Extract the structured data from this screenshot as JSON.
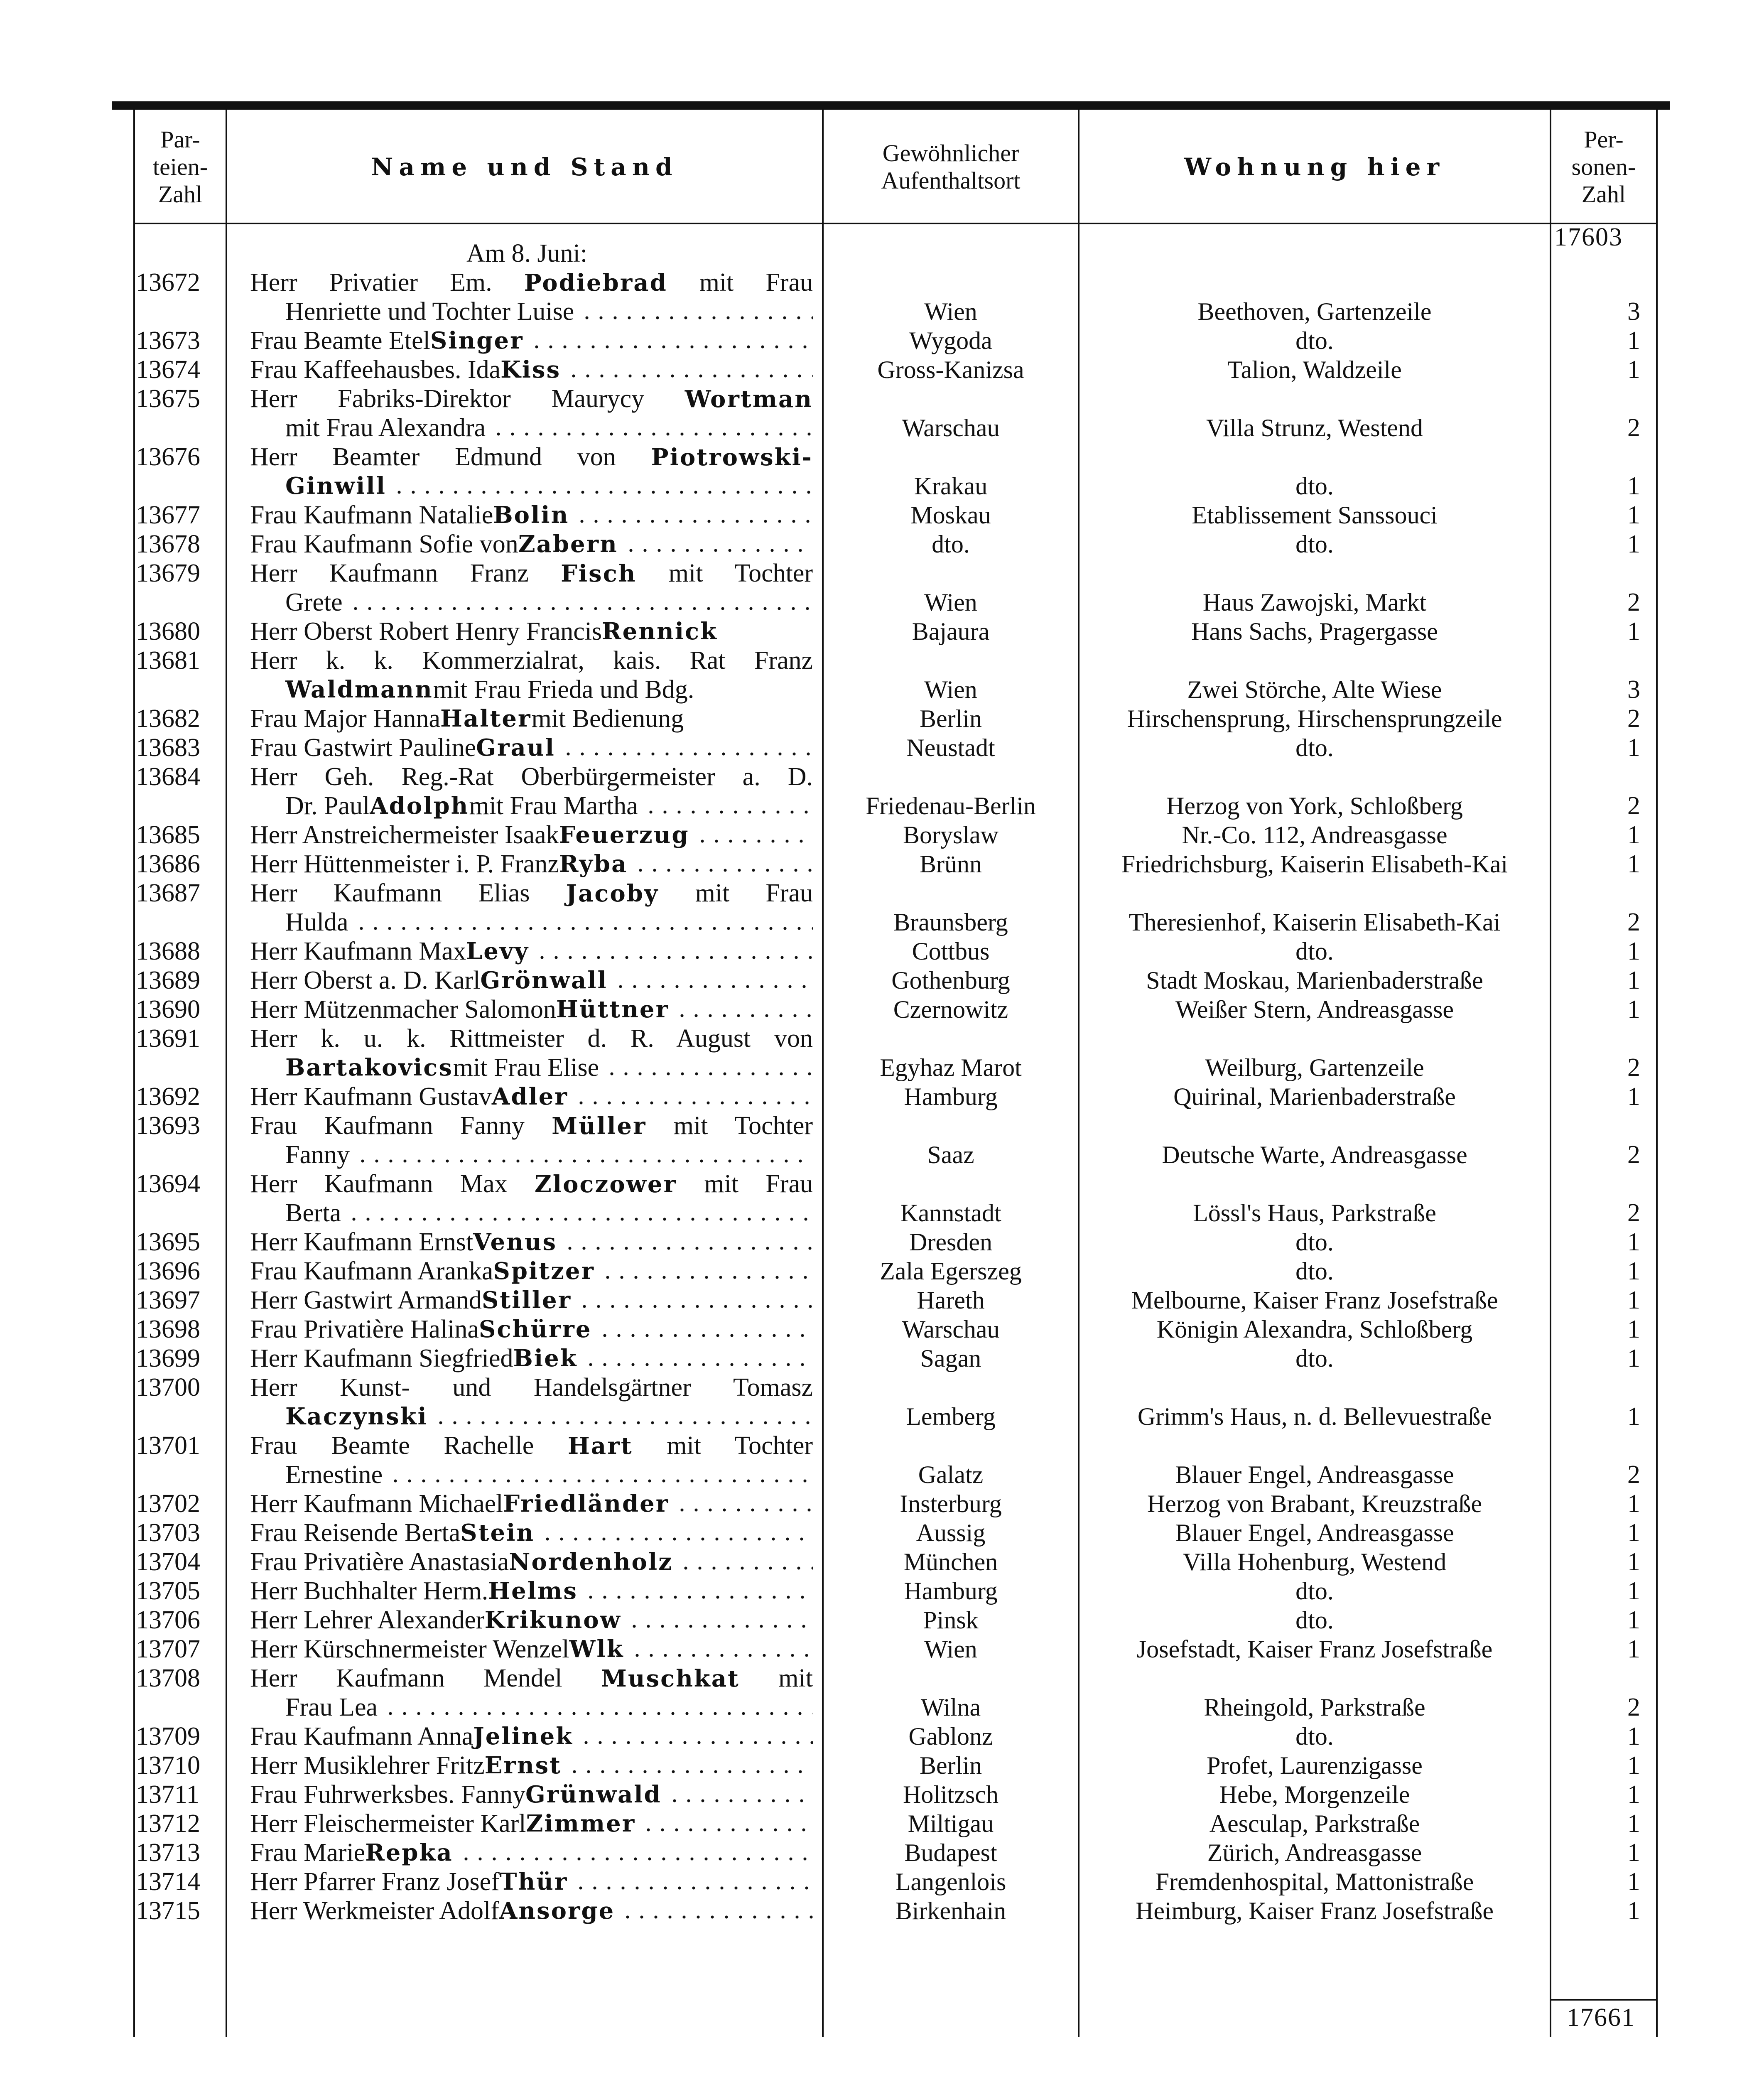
{
  "header": {
    "col_number": "Par-\nteien-\nZahl",
    "col_name": "Name und Stand",
    "col_origin": "Gewöhnlicher\nAufenthaltsort",
    "col_residence": "Wohnung hier",
    "col_persons": "Per-\nsonen-\nZahl"
  },
  "carry_over_total": "17603",
  "final_total": "17661",
  "day_heading": "Am 8. Juni:",
  "entries": [
    {
      "n": "13672",
      "l": [
        [
          "Herr Privatier Em. ",
          "Podiebrad",
          " mit Frau"
        ],
        [
          "Henriette und Tochter Luise",
          "",
          ""
        ]
      ],
      "loc": "Wien",
      "res": "Beethoven, Gartenzeile",
      "p": "3"
    },
    {
      "n": "13673",
      "l": [
        [
          "Frau Beamte Etel ",
          "Singer",
          ""
        ]
      ],
      "loc": "Wygoda",
      "res": "dto.",
      "p": "1"
    },
    {
      "n": "13674",
      "l": [
        [
          "Frau Kaffeehausbes. Ida ",
          "Kiss",
          ""
        ]
      ],
      "loc": "Gross-Kanizsa",
      "res": "Talion, Waldzeile",
      "p": "1"
    },
    {
      "n": "13675",
      "l": [
        [
          "Herr Fabriks-Direktor Maurycy ",
          "Wortman",
          ""
        ],
        [
          "mit Frau Alexandra",
          "",
          ""
        ]
      ],
      "loc": "Warschau",
      "res": "Villa Strunz, Westend",
      "p": "2"
    },
    {
      "n": "13676",
      "l": [
        [
          "Herr Beamter Edmund von ",
          "Piotrowski-",
          ""
        ],
        [
          "",
          "Ginwill",
          ""
        ]
      ],
      "loc": "Krakau",
      "res": "dto.",
      "p": "1"
    },
    {
      "n": "13677",
      "l": [
        [
          "Frau Kaufmann Natalie ",
          "Bolin",
          ""
        ]
      ],
      "loc": "Moskau",
      "res": "Etablissement Sanssouci",
      "p": "1"
    },
    {
      "n": "13678",
      "l": [
        [
          "Frau Kaufmann Sofie von ",
          "Zabern",
          ""
        ]
      ],
      "loc": "dto.",
      "res": "dto.",
      "p": "1"
    },
    {
      "n": "13679",
      "l": [
        [
          "Herr Kaufmann Franz ",
          "Fisch",
          " mit Tochter"
        ],
        [
          "Grete",
          "",
          ""
        ]
      ],
      "loc": "Wien",
      "res": "Haus Zawojski, Markt",
      "p": "2"
    },
    {
      "n": "13680",
      "l": [
        [
          "Herr Oberst Robert Henry Francis ",
          "Rennick",
          ""
        ]
      ],
      "loc": "Bajaura",
      "res": "Hans Sachs, Pragergasse",
      "p": "1",
      "dots": false
    },
    {
      "n": "13681",
      "l": [
        [
          "Herr k. k. Kommerzialrat, kais. Rat Franz",
          "",
          ""
        ],
        [
          "",
          "Waldmann",
          " mit Frau Frieda und Bdg."
        ]
      ],
      "loc": "Wien",
      "res": "Zwei Störche, Alte Wiese",
      "p": "3",
      "dots": false
    },
    {
      "n": "13682",
      "l": [
        [
          "Frau Major Hanna ",
          "Halter",
          " mit Bedienung"
        ]
      ],
      "loc": "Berlin",
      "res": "Hirschensprung, Hirschensprungzeile",
      "p": "2",
      "dots": false
    },
    {
      "n": "13683",
      "l": [
        [
          "Frau Gastwirt Pauline ",
          "Graul",
          ""
        ]
      ],
      "loc": "Neustadt",
      "res": "dto.",
      "p": "1"
    },
    {
      "n": "13684",
      "l": [
        [
          "Herr Geh. Reg.-Rat Oberbürgermeister a. D.",
          "",
          ""
        ],
        [
          "Dr. Paul ",
          "Adolph",
          " mit Frau Martha"
        ]
      ],
      "loc": "Friedenau-Berlin",
      "res": "Herzog von York, Schloßberg",
      "p": "2"
    },
    {
      "n": "13685",
      "l": [
        [
          "Herr Anstreichermeister Isaak ",
          "Feuerzug",
          ""
        ]
      ],
      "loc": "Boryslaw",
      "res": "Nr.-Co. 112, Andreasgasse",
      "p": "1"
    },
    {
      "n": "13686",
      "l": [
        [
          "Herr Hüttenmeister i. P. Franz ",
          "Ryba",
          ""
        ]
      ],
      "loc": "Brünn",
      "res": "Friedrichsburg, Kaiserin Elisabeth-Kai",
      "p": "1"
    },
    {
      "n": "13687",
      "l": [
        [
          "Herr Kaufmann Elias ",
          "Jacoby",
          " mit Frau"
        ],
        [
          "Hulda",
          "",
          ""
        ]
      ],
      "loc": "Braunsberg",
      "res": "Theresienhof, Kaiserin Elisabeth-Kai",
      "p": "2"
    },
    {
      "n": "13688",
      "l": [
        [
          "Herr Kaufmann Max ",
          "Levy",
          ""
        ]
      ],
      "loc": "Cottbus",
      "res": "dto.",
      "p": "1"
    },
    {
      "n": "13689",
      "l": [
        [
          "Herr Oberst a. D. Karl ",
          "Grönwall",
          ""
        ]
      ],
      "loc": "Gothenburg",
      "res": "Stadt Moskau, Marienbaderstraße",
      "p": "1"
    },
    {
      "n": "13690",
      "l": [
        [
          "Herr Mützenmacher Salomon ",
          "Hüttner",
          ""
        ]
      ],
      "loc": "Czernowitz",
      "res": "Weißer Stern, Andreasgasse",
      "p": "1"
    },
    {
      "n": "13691",
      "l": [
        [
          "Herr k. u. k. Rittmeister d. R. August von",
          "",
          ""
        ],
        [
          "",
          "Bartakovics",
          " mit Frau Elise"
        ]
      ],
      "loc": "Egyhaz Marot",
      "res": "Weilburg, Gartenzeile",
      "p": "2"
    },
    {
      "n": "13692",
      "l": [
        [
          "Herr Kaufmann Gustav ",
          "Adler",
          ""
        ]
      ],
      "loc": "Hamburg",
      "res": "Quirinal, Marienbaderstraße",
      "p": "1"
    },
    {
      "n": "13693",
      "l": [
        [
          "Frau Kaufmann Fanny ",
          "Müller",
          " mit Tochter"
        ],
        [
          "Fanny",
          "",
          ""
        ]
      ],
      "loc": "Saaz",
      "res": "Deutsche Warte, Andreasgasse",
      "p": "2"
    },
    {
      "n": "13694",
      "l": [
        [
          "Herr Kaufmann Max ",
          "Zloczower",
          " mit Frau"
        ],
        [
          "Berta",
          "",
          ""
        ]
      ],
      "loc": "Kannstadt",
      "res": "Lössl's Haus, Parkstraße",
      "p": "2"
    },
    {
      "n": "13695",
      "l": [
        [
          "Herr Kaufmann Ernst ",
          "Venus",
          ""
        ]
      ],
      "loc": "Dresden",
      "res": "dto.",
      "p": "1"
    },
    {
      "n": "13696",
      "l": [
        [
          "Frau Kaufmann Aranka ",
          "Spitzer",
          ""
        ]
      ],
      "loc": "Zala Egerszeg",
      "res": "dto.",
      "p": "1"
    },
    {
      "n": "13697",
      "l": [
        [
          "Herr Gastwirt Armand ",
          "Stiller",
          ""
        ]
      ],
      "loc": "Hareth",
      "res": "Melbourne, Kaiser Franz Josefstraße",
      "p": "1"
    },
    {
      "n": "13698",
      "l": [
        [
          "Frau Privatière Halina ",
          "Schürre",
          ""
        ]
      ],
      "loc": "Warschau",
      "res": "Königin Alexandra, Schloßberg",
      "p": "1"
    },
    {
      "n": "13699",
      "l": [
        [
          "Herr Kaufmann Siegfried ",
          "Biek",
          ""
        ]
      ],
      "loc": "Sagan",
      "res": "dto.",
      "p": "1"
    },
    {
      "n": "13700",
      "l": [
        [
          "Herr Kunst- und Handelsgärtner Tomasz",
          "",
          ""
        ],
        [
          "",
          "Kaczynski",
          ""
        ]
      ],
      "loc": "Lemberg",
      "res": "Grimm's Haus, n. d. Bellevuestraße",
      "p": "1"
    },
    {
      "n": "13701",
      "l": [
        [
          "Frau Beamte Rachelle ",
          "Hart",
          " mit Tochter"
        ],
        [
          "Ernestine",
          "",
          ""
        ]
      ],
      "loc": "Galatz",
      "res": "Blauer Engel, Andreasgasse",
      "p": "2"
    },
    {
      "n": "13702",
      "l": [
        [
          "Herr Kaufmann Michael ",
          "Friedländer",
          ""
        ]
      ],
      "loc": "Insterburg",
      "res": "Herzog von Brabant, Kreuzstraße",
      "p": "1"
    },
    {
      "n": "13703",
      "l": [
        [
          "Frau Reisende Berta ",
          "Stein",
          ""
        ]
      ],
      "loc": "Aussig",
      "res": "Blauer Engel, Andreasgasse",
      "p": "1"
    },
    {
      "n": "13704",
      "l": [
        [
          "Frau Privatière Anastasia ",
          "Nordenholz",
          ""
        ]
      ],
      "loc": "München",
      "res": "Villa Hohenburg, Westend",
      "p": "1"
    },
    {
      "n": "13705",
      "l": [
        [
          "Herr Buchhalter Herm. ",
          "Helms",
          ""
        ]
      ],
      "loc": "Hamburg",
      "res": "dto.",
      "p": "1"
    },
    {
      "n": "13706",
      "l": [
        [
          "Herr Lehrer Alexander ",
          "Krikunow",
          ""
        ]
      ],
      "loc": "Pinsk",
      "res": "dto.",
      "p": "1"
    },
    {
      "n": "13707",
      "l": [
        [
          "Herr Kürschnermeister Wenzel ",
          "Wlk",
          ""
        ]
      ],
      "loc": "Wien",
      "res": "Josefstadt, Kaiser Franz Josefstraße",
      "p": "1"
    },
    {
      "n": "13708",
      "l": [
        [
          "Herr Kaufmann Mendel ",
          "Muschkat",
          " mit"
        ],
        [
          "Frau Lea",
          "",
          ""
        ]
      ],
      "loc": "Wilna",
      "res": "Rheingold, Parkstraße",
      "p": "2"
    },
    {
      "n": "13709",
      "l": [
        [
          "Frau Kaufmann Anna ",
          "Jelinek",
          ""
        ]
      ],
      "loc": "Gablonz",
      "res": "dto.",
      "p": "1"
    },
    {
      "n": "13710",
      "l": [
        [
          "Herr Musiklehrer Fritz ",
          "Ernst",
          ""
        ]
      ],
      "loc": "Berlin",
      "res": "Profet, Laurenzigasse",
      "p": "1"
    },
    {
      "n": "13711",
      "l": [
        [
          "Frau Fuhrwerksbes. Fanny ",
          "Grünwald",
          ""
        ]
      ],
      "loc": "Holitzsch",
      "res": "Hebe, Morgenzeile",
      "p": "1"
    },
    {
      "n": "13712",
      "l": [
        [
          "Herr Fleischermeister Karl ",
          "Zimmer",
          ""
        ]
      ],
      "loc": "Miltigau",
      "res": "Aesculap, Parkstraße",
      "p": "1"
    },
    {
      "n": "13713",
      "l": [
        [
          "Frau Marie ",
          "Repka",
          ""
        ]
      ],
      "loc": "Budapest",
      "res": "Zürich, Andreasgasse",
      "p": "1"
    },
    {
      "n": "13714",
      "l": [
        [
          "Herr Pfarrer Franz Josef ",
          "Thür",
          ""
        ]
      ],
      "loc": "Langenlois",
      "res": "Fremdenhospital, Mattonistraße",
      "p": "1"
    },
    {
      "n": "13715",
      "l": [
        [
          "Herr Werkmeister Adolf ",
          "Ansorge",
          ""
        ]
      ],
      "loc": "Birkenhain",
      "res": "Heimburg, Kaiser Franz Josefstraße",
      "p": "1"
    }
  ]
}
